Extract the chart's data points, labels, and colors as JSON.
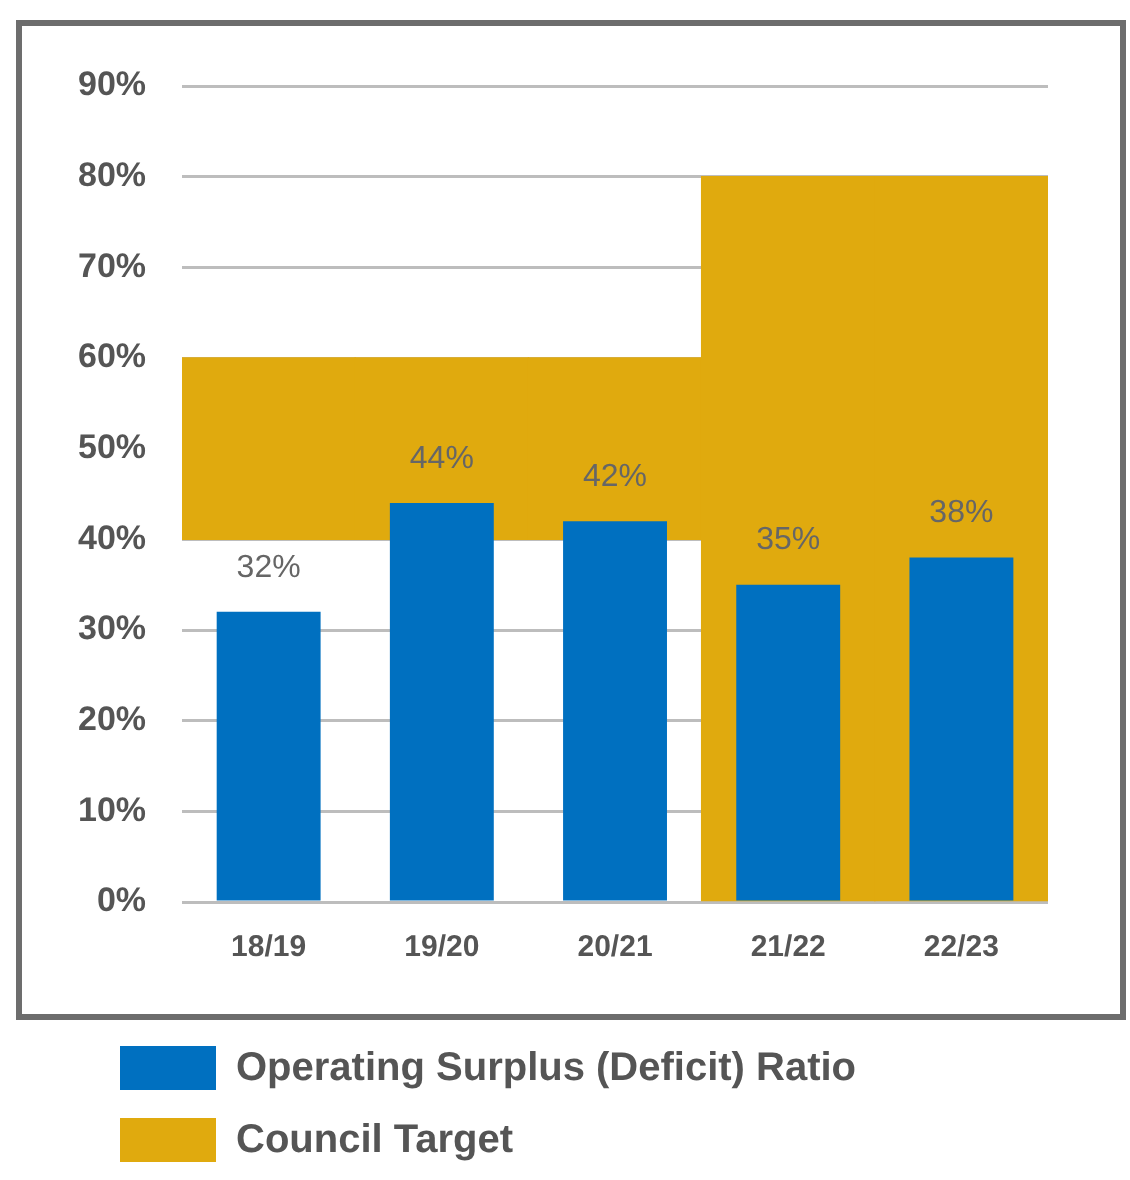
{
  "chart_data": {
    "type": "bar",
    "categories": [
      "18/19",
      "19/20",
      "20/21",
      "21/22",
      "22/23"
    ],
    "series": [
      {
        "name": "Operating Surplus (Deficit) Ratio",
        "color": "#0070c0",
        "values": [
          32,
          44,
          42,
          35,
          38
        ],
        "value_labels": [
          "32%",
          "44%",
          "42%",
          "35%",
          "38%"
        ]
      },
      {
        "name": "Council Target",
        "color": "#e0aa0e",
        "values": [
          20,
          20,
          20,
          80,
          80
        ],
        "base": [
          40,
          40,
          40,
          0,
          0
        ]
      }
    ],
    "ylim": [
      0,
      90
    ],
    "yticks": [
      {
        "value": 0,
        "label": "0%"
      },
      {
        "value": 10,
        "label": "10%"
      },
      {
        "value": 20,
        "label": "20%"
      },
      {
        "value": 30,
        "label": "30%"
      },
      {
        "value": 40,
        "label": "40%"
      },
      {
        "value": 50,
        "label": "50%"
      },
      {
        "value": 60,
        "label": "60%"
      },
      {
        "value": 70,
        "label": "70%"
      },
      {
        "value": 80,
        "label": "80%"
      },
      {
        "value": 90,
        "label": "90%"
      }
    ],
    "grid": "y",
    "legend": "bottom"
  }
}
